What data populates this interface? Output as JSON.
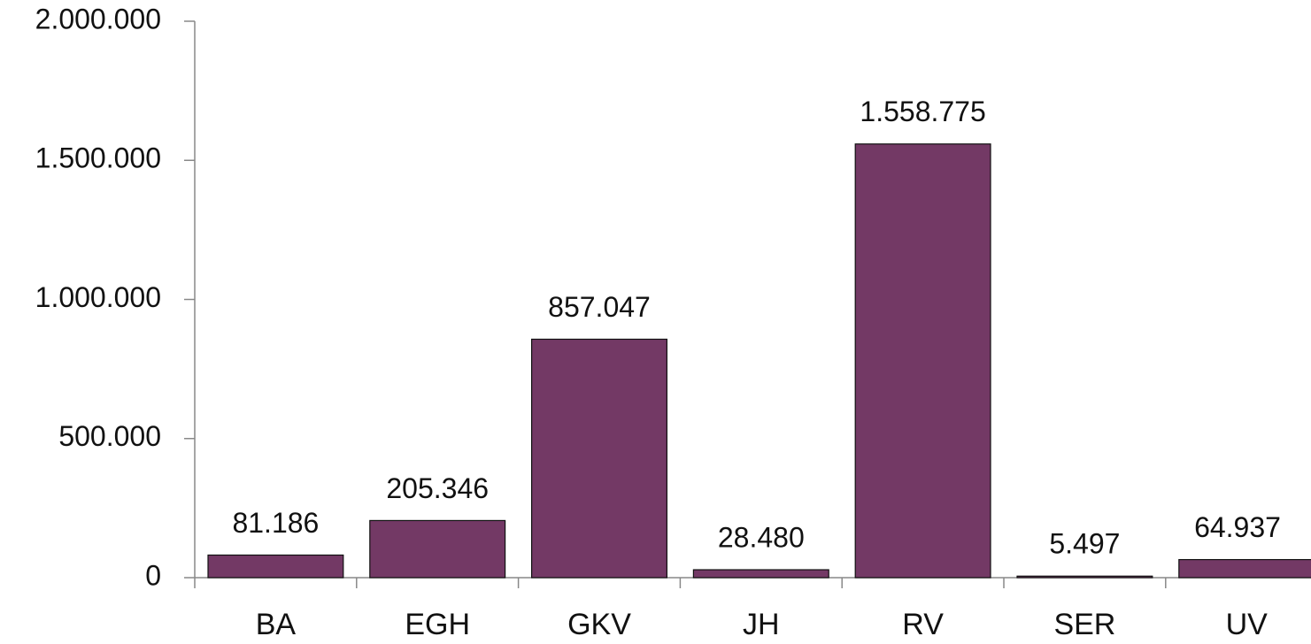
{
  "chart_data": {
    "type": "bar",
    "categories": [
      "BA",
      "EGH",
      "GKV",
      "JH",
      "RV",
      "SER",
      "UV"
    ],
    "values": [
      81186,
      205346,
      857047,
      28480,
      1558775,
      5497,
      64937
    ],
    "value_labels": [
      "81.186",
      "205.346",
      "857.047",
      "28.480",
      "1.558.775",
      "5.497",
      "64.937"
    ],
    "color": "#733965",
    "ylim": [
      0,
      2000000
    ],
    "yticks": [
      0,
      {
        "value": 500000,
        "label": "500.000"
      },
      {
        "value": 1000000,
        "label": "1.000.000"
      },
      {
        "value": 1500000,
        "label": "1.500.000"
      },
      {
        "value": 2000000,
        "label": "2.000.000"
      }
    ],
    "grid": false
  }
}
